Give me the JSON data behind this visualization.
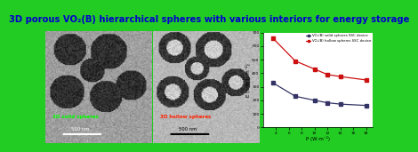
{
  "title": "3D porous VO₂(B) hierarchical spheres with various interiors for energy storage",
  "title_color": "#0000cc",
  "title_fontsize": 7.2,
  "border_color": "#22cc22",
  "left_label": "3D solid spheres",
  "right_label": "3D hollow spheres",
  "left_label_color": "#00ff00",
  "right_label_color": "#ff2200",
  "scalebar_text": "500 nm",
  "solid_P": [
    3.5,
    7,
    10,
    12,
    14,
    18
  ],
  "solid_E": [
    330,
    230,
    200,
    182,
    172,
    162
  ],
  "hollow_P": [
    3.5,
    7,
    10,
    12,
    14,
    18
  ],
  "hollow_E": [
    660,
    490,
    430,
    390,
    375,
    350
  ],
  "solid_color": "#333366",
  "hollow_color": "#cc1111",
  "ylabel": "E (mW·h·m⁻²)",
  "xlabel": "P (W·m⁻²)",
  "ylim": [
    0,
    700
  ],
  "xlim": [
    2,
    19
  ],
  "xticks": [
    4,
    6,
    8,
    10,
    12,
    14,
    16,
    18
  ],
  "yticks": [
    0,
    100,
    200,
    300,
    400,
    500,
    600,
    700
  ],
  "legend_solid": "VO₂(B) solid spheres SSC device",
  "legend_hollow": "VO₂(B) hollow spheres SSC device",
  "bg_left": "#909090",
  "bg_mid": "#b0b0b0"
}
